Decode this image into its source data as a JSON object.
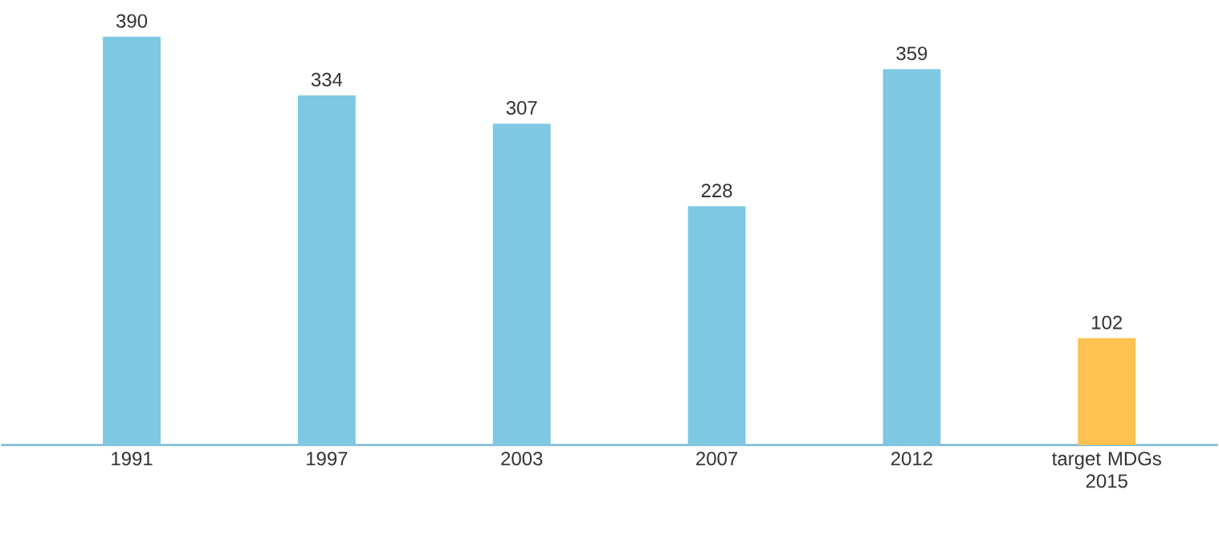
{
  "chart_data": {
    "type": "bar",
    "categories": [
      "1991",
      "1997",
      "2003",
      "2007",
      "2012",
      "target MDGs 2015"
    ],
    "values": [
      390,
      334,
      307,
      228,
      359,
      102
    ],
    "colors": [
      "#7ec8e3",
      "#7ec8e3",
      "#7ec8e3",
      "#7ec8e3",
      "#7ec8e3",
      "#fdc24f"
    ],
    "data_labels": true
  }
}
